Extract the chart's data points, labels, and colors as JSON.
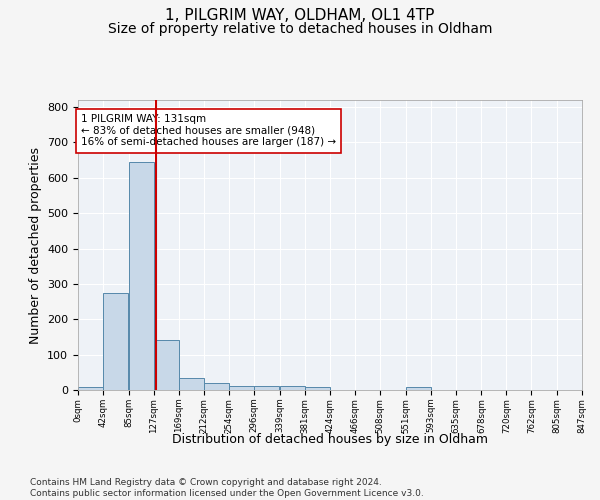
{
  "title1": "1, PILGRIM WAY, OLDHAM, OL1 4TP",
  "title2": "Size of property relative to detached houses in Oldham",
  "xlabel": "Distribution of detached houses by size in Oldham",
  "ylabel": "Number of detached properties",
  "bar_values": [
    9,
    275,
    645,
    140,
    35,
    20,
    12,
    10,
    10,
    8,
    0,
    0,
    0,
    8,
    0,
    0,
    0,
    0,
    0
  ],
  "bin_edges": [
    0,
    42,
    85,
    127,
    169,
    212,
    254,
    296,
    339,
    381,
    424,
    466,
    508,
    551,
    593,
    635,
    678,
    720,
    762,
    805
  ],
  "tick_labels": [
    "0sqm",
    "42sqm",
    "85sqm",
    "127sqm",
    "169sqm",
    "212sqm",
    "254sqm",
    "296sqm",
    "339sqm",
    "381sqm",
    "424sqm",
    "466sqm",
    "508sqm",
    "551sqm",
    "593sqm",
    "635sqm",
    "678sqm",
    "720sqm",
    "762sqm",
    "805sqm",
    "847sqm"
  ],
  "bar_color": "#c8d8e8",
  "bar_edge_color": "#5588aa",
  "property_line_x": 131,
  "property_line_color": "#cc0000",
  "annotation_text": "1 PILGRIM WAY: 131sqm\n← 83% of detached houses are smaller (948)\n16% of semi-detached houses are larger (187) →",
  "annotation_box_color": "#ffffff",
  "annotation_box_edge": "#cc0000",
  "ylim": [
    0,
    820
  ],
  "yticks": [
    0,
    100,
    200,
    300,
    400,
    500,
    600,
    700,
    800
  ],
  "background_color": "#eef2f7",
  "grid_color": "#ffffff",
  "footer_text": "Contains HM Land Registry data © Crown copyright and database right 2024.\nContains public sector information licensed under the Open Government Licence v3.0.",
  "title1_fontsize": 11,
  "title2_fontsize": 10,
  "xlabel_fontsize": 9,
  "ylabel_fontsize": 9,
  "annotation_fontsize": 7.5,
  "footer_fontsize": 6.5,
  "fig_bg": "#f5f5f5"
}
